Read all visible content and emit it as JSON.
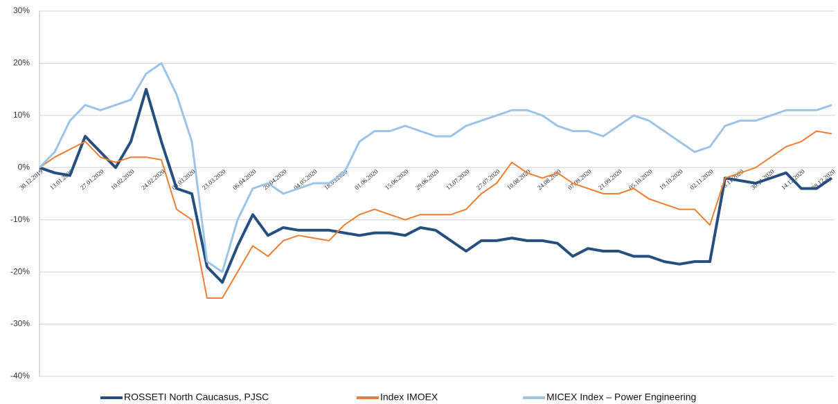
{
  "chart_data": {
    "type": "line",
    "categories": [
      "30.12.2019",
      null,
      "13.01.2020",
      null,
      "27.01.2020",
      null,
      "10.02.2020",
      null,
      "24.02.2020",
      null,
      "09.03.2020",
      null,
      "23.03.2020",
      null,
      "06.04.2020",
      null,
      "20.04.2020",
      null,
      "04.05.2020",
      null,
      "18.05.2020",
      null,
      "01.06.2020",
      null,
      "15.06.2020",
      null,
      "29.06.2020",
      null,
      "13.07.2020",
      null,
      "27.07.2020",
      null,
      "10.08.2020",
      null,
      "24.08.2020",
      null,
      "07.09.2020",
      null,
      "21.09.2020",
      null,
      "05.10.2020",
      null,
      "19.10.2020",
      null,
      "02.11.2020",
      null,
      "16.11.2020",
      null,
      "30.11.2020",
      null,
      "14.12.2020",
      null,
      "28.12.2020"
    ],
    "series": [
      {
        "name": "ROSSETI North Caucasus, PJSC",
        "color": "#264f7f",
        "width": 4,
        "values": [
          0,
          -1,
          -1.5,
          6,
          3,
          0,
          5,
          15,
          5,
          -4,
          -5,
          -19,
          -22,
          -15,
          -9,
          -13,
          -11.5,
          -12,
          -12,
          -12,
          -12.5,
          -13,
          -12.5,
          -12.5,
          -13,
          -11.5,
          -12,
          -14,
          -16,
          -14,
          -14,
          -13.5,
          -14,
          -14,
          -14.5,
          -17,
          -15.5,
          -16,
          -16,
          -17,
          -17,
          -18,
          -18.5,
          -18,
          -18,
          -2,
          -2.5,
          -3,
          -2,
          -1,
          -4,
          -4,
          -2
        ]
      },
      {
        "name": "Index IMOEX",
        "color": "#ed7d31",
        "width": 2,
        "values": [
          0,
          2,
          3.5,
          5,
          2,
          1,
          2,
          2,
          1.5,
          -8,
          -10,
          -25,
          -25,
          -20,
          -15,
          -17,
          -14,
          -13,
          -13.5,
          -14,
          -11,
          -9,
          -8,
          -9,
          -10,
          -9,
          -9,
          -9,
          -8,
          -5,
          -3,
          1,
          -1,
          -2,
          -1,
          -3,
          -4,
          -5,
          -5,
          -4,
          -6,
          -7,
          -8,
          -8,
          -11,
          -2,
          -1,
          0,
          2,
          4,
          5,
          7,
          6.5
        ]
      },
      {
        "name": "MICEX Index – Power Engineering",
        "color": "#9dc3e6",
        "width": 3,
        "values": [
          0,
          3,
          9,
          12,
          11,
          12,
          13,
          18,
          20,
          14,
          5,
          -18,
          -20,
          -10,
          -4,
          -3,
          -5,
          -4,
          -3,
          -3,
          -1,
          5,
          7,
          7,
          8,
          7,
          6,
          6,
          8,
          9,
          10,
          11,
          11,
          10,
          8,
          7,
          7,
          6,
          8,
          10,
          9,
          7,
          5,
          3,
          4,
          8,
          9,
          9,
          10,
          11,
          11,
          11,
          12
        ]
      }
    ],
    "ylim": [
      -40,
      30
    ],
    "yticks": [
      {
        "value": -40,
        "label": "-40%"
      },
      {
        "value": -30,
        "label": "-30%"
      },
      {
        "value": -20,
        "label": "-20%"
      },
      {
        "value": -10,
        "label": "-10%"
      },
      {
        "value": 0,
        "label": "0%"
      },
      {
        "value": 10,
        "label": "10%"
      },
      {
        "value": 20,
        "label": "20%"
      },
      {
        "value": 30,
        "label": "30%"
      }
    ],
    "grid": true,
    "legend": "bottom"
  }
}
